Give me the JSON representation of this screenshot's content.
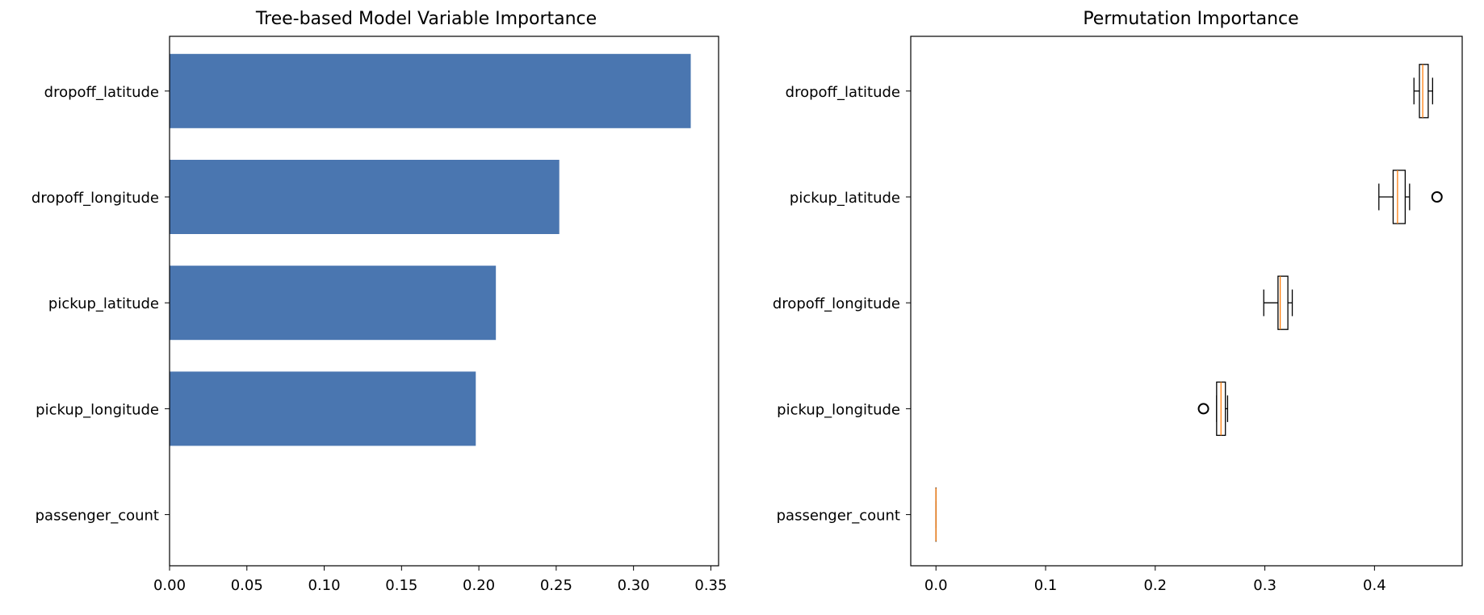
{
  "chart_data": [
    {
      "type": "bar",
      "orientation": "horizontal",
      "title": "Tree-based Model Variable Importance",
      "categories": [
        "dropoff_latitude",
        "dropoff_longitude",
        "pickup_latitude",
        "pickup_longitude",
        "passenger_count"
      ],
      "values": [
        0.337,
        0.252,
        0.211,
        0.198,
        0.0
      ],
      "xlim": [
        0.0,
        0.355
      ],
      "xticks": [
        0.0,
        0.05,
        0.1,
        0.15,
        0.2,
        0.25,
        0.3,
        0.35
      ],
      "xtick_labels": [
        "0.00",
        "0.05",
        "0.10",
        "0.15",
        "0.20",
        "0.25",
        "0.30",
        "0.35"
      ],
      "xlabel": "",
      "ylabel": "",
      "bar_color": "#4a76b0",
      "grid": false
    },
    {
      "type": "boxplot",
      "orientation": "horizontal",
      "title": "Permutation Importance",
      "categories": [
        "dropoff_latitude",
        "pickup_latitude",
        "dropoff_longitude",
        "pickup_longitude",
        "passenger_count"
      ],
      "boxes": [
        {
          "whisker_low": 0.436,
          "q1": 0.441,
          "median": 0.444,
          "q3": 0.449,
          "whisker_high": 0.453,
          "outliers": []
        },
        {
          "whisker_low": 0.404,
          "q1": 0.417,
          "median": 0.421,
          "q3": 0.428,
          "whisker_high": 0.432,
          "outliers": [
            0.457
          ]
        },
        {
          "whisker_low": 0.299,
          "q1": 0.312,
          "median": 0.314,
          "q3": 0.321,
          "whisker_high": 0.325,
          "outliers": []
        },
        {
          "whisker_low": 0.256,
          "q1": 0.256,
          "median": 0.26,
          "q3": 0.264,
          "whisker_high": 0.266,
          "outliers": [
            0.244
          ]
        },
        {
          "whisker_low": 0.0,
          "q1": 0.0,
          "median": 0.0,
          "q3": 0.0,
          "whisker_high": 0.0,
          "outliers": []
        }
      ],
      "xlim": [
        -0.023,
        0.48
      ],
      "xticks": [
        0.0,
        0.1,
        0.2,
        0.3,
        0.4
      ],
      "xtick_labels": [
        "0.0",
        "0.1",
        "0.2",
        "0.3",
        "0.4"
      ],
      "xlabel": "",
      "ylabel": "",
      "box_color": "#000000",
      "median_color": "#ff7f0e",
      "grid": false
    }
  ]
}
